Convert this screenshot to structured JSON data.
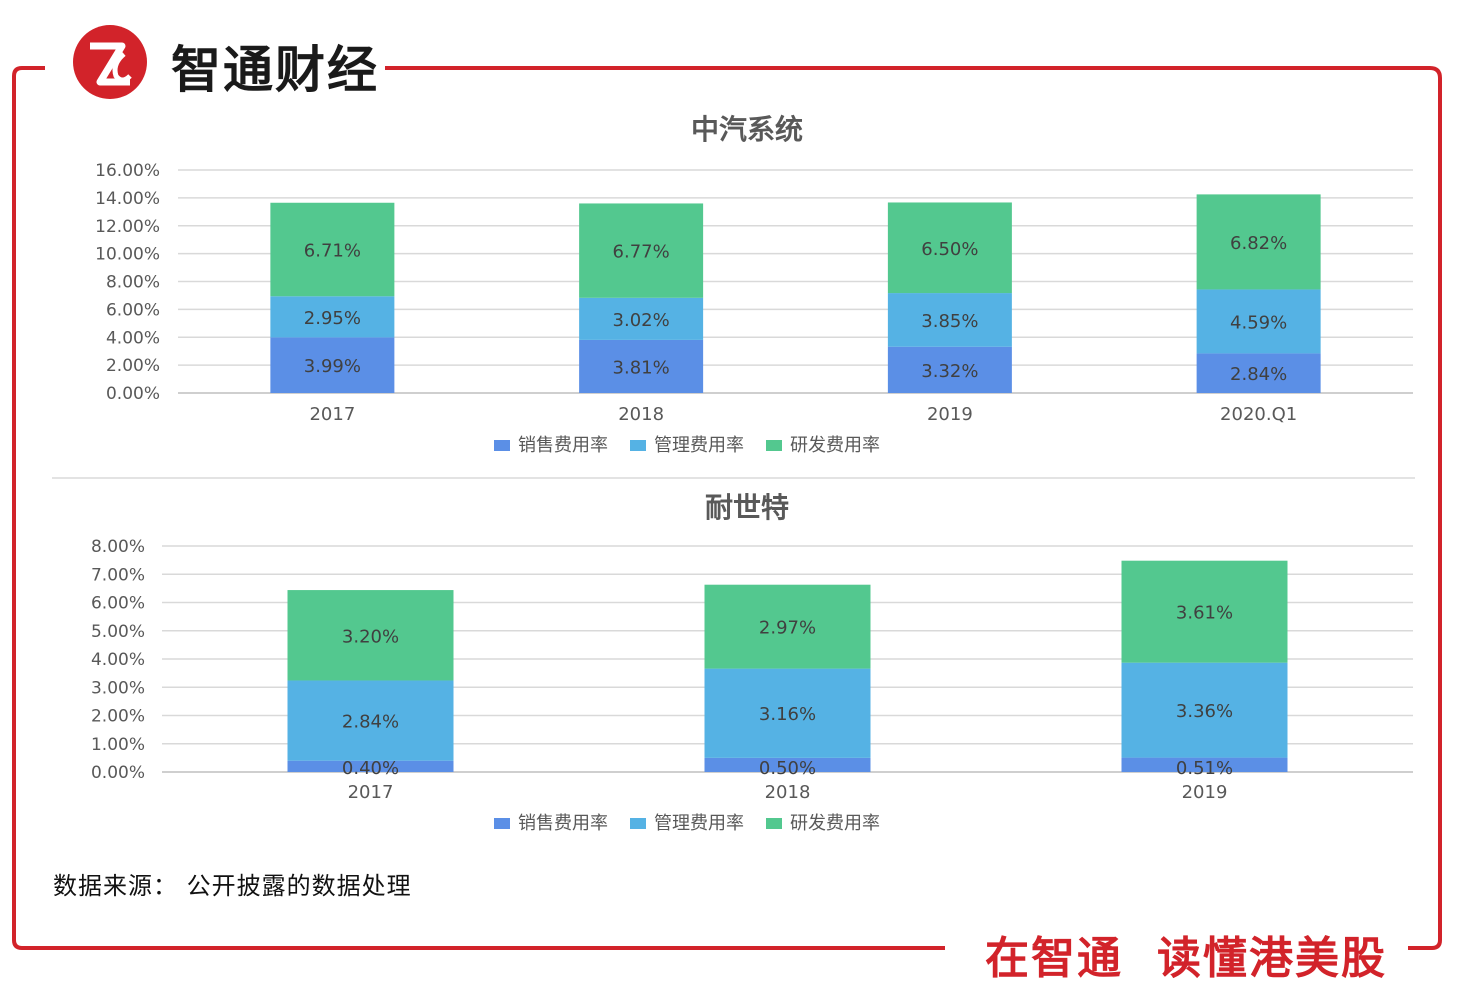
{
  "brand": {
    "name": "智通财经",
    "logo_icon": "zhitong-logo-icon"
  },
  "footer": {
    "source": "数据来源： 公开披露的数据处理",
    "slogan_part1": "在智通",
    "slogan_part2": "读懂港美股"
  },
  "colors": {
    "frame": "#d2232a",
    "sales": "#5b8fe6",
    "admin": "#55b2e4",
    "rd": "#53c88f",
    "grid": "#d9d9d9",
    "text": "#595959"
  },
  "chart_data": [
    {
      "type": "bar",
      "stacked": true,
      "title": "中汽系统",
      "categories": [
        "2017",
        "2018",
        "2019",
        "2020.Q1"
      ],
      "yticks": [
        "0.00%",
        "2.00%",
        "4.00%",
        "6.00%",
        "8.00%",
        "10.00%",
        "12.00%",
        "14.00%",
        "16.00%"
      ],
      "ylim": [
        0,
        16
      ],
      "grid": true,
      "legend": "bottom",
      "series": [
        {
          "name": "销售费用率",
          "values": [
            3.99,
            3.81,
            3.32,
            2.84
          ],
          "labels": [
            "3.99%",
            "3.81%",
            "3.32%",
            "2.84%"
          ]
        },
        {
          "name": "管理费用率",
          "values": [
            2.95,
            3.02,
            3.85,
            4.59
          ],
          "labels": [
            "2.95%",
            "3.02%",
            "3.85%",
            "4.59%"
          ]
        },
        {
          "name": "研发费用率",
          "values": [
            6.71,
            6.77,
            6.5,
            6.82
          ],
          "labels": [
            "6.71%",
            "6.77%",
            "6.50%",
            "6.82%"
          ]
        }
      ]
    },
    {
      "type": "bar",
      "stacked": true,
      "title": "耐世特",
      "categories": [
        "2017",
        "2018",
        "2019"
      ],
      "yticks": [
        "0.00%",
        "1.00%",
        "2.00%",
        "3.00%",
        "4.00%",
        "5.00%",
        "6.00%",
        "7.00%",
        "8.00%"
      ],
      "ylim": [
        0,
        8
      ],
      "grid": true,
      "legend": "bottom",
      "series": [
        {
          "name": "销售费用率",
          "values": [
            0.4,
            0.5,
            0.51
          ],
          "labels": [
            "0.40%",
            "0.50%",
            "0.51%"
          ]
        },
        {
          "name": "管理费用率",
          "values": [
            2.84,
            3.16,
            3.36
          ],
          "labels": [
            "2.84%",
            "3.16%",
            "3.36%"
          ]
        },
        {
          "name": "研发费用率",
          "values": [
            3.2,
            2.97,
            3.61
          ],
          "labels": [
            "3.20%",
            "2.97%",
            "3.61%"
          ]
        }
      ]
    }
  ]
}
